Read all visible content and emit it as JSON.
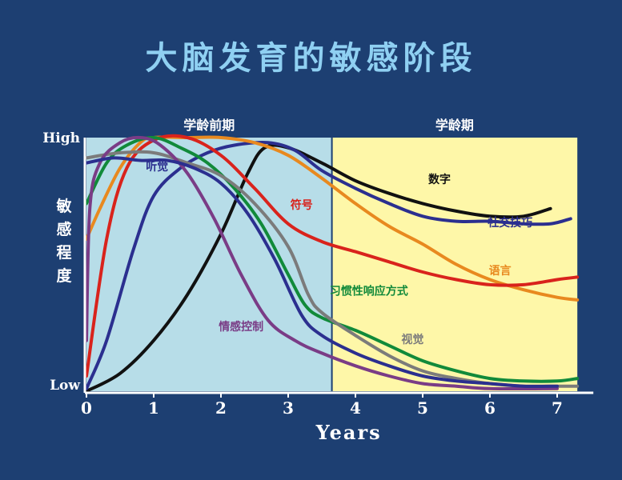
{
  "title": "大脑发育的敏感阶段",
  "chart_data": {
    "type": "line",
    "title": "大脑发育的敏感阶段",
    "xlabel": "Years",
    "ylabel": "敏感程度",
    "x_ticks": [
      "0",
      "1",
      "2",
      "3",
      "4",
      "5",
      "6",
      "7"
    ],
    "xlim": [
      0,
      7.3
    ],
    "ylim": [
      0,
      1
    ],
    "y_tick_labels": {
      "high": "High",
      "low": "Low"
    },
    "regions": [
      {
        "label": "学龄前期",
        "from": 0,
        "to": 3.65,
        "color": "#b7dde8"
      },
      {
        "label": "学龄期",
        "from": 3.65,
        "to": 7.3,
        "color": "#fef7a8"
      }
    ],
    "series": [
      {
        "name": "数字",
        "color": "#111111",
        "label_at": [
          5.25,
          0.82
        ],
        "points": [
          [
            0,
            0
          ],
          [
            0.5,
            0.07
          ],
          [
            1,
            0.2
          ],
          [
            1.5,
            0.38
          ],
          [
            2,
            0.62
          ],
          [
            2.4,
            0.86
          ],
          [
            2.65,
            0.96
          ],
          [
            3,
            0.96
          ],
          [
            3.5,
            0.9
          ],
          [
            4,
            0.83
          ],
          [
            4.5,
            0.78
          ],
          [
            5,
            0.74
          ],
          [
            5.5,
            0.71
          ],
          [
            6,
            0.69
          ],
          [
            6.5,
            0.69
          ],
          [
            6.9,
            0.72
          ]
        ]
      },
      {
        "name": "社交技巧",
        "color": "#2b2f8f",
        "label_at": [
          6.3,
          0.65
        ],
        "points": [
          [
            0,
            0.01
          ],
          [
            0.3,
            0.2
          ],
          [
            0.7,
            0.56
          ],
          [
            1,
            0.77
          ],
          [
            1.4,
            0.88
          ],
          [
            1.8,
            0.94
          ],
          [
            2.2,
            0.97
          ],
          [
            2.7,
            0.98
          ],
          [
            3.1,
            0.95
          ],
          [
            3.5,
            0.87
          ],
          [
            4,
            0.8
          ],
          [
            4.5,
            0.74
          ],
          [
            5,
            0.69
          ],
          [
            5.5,
            0.67
          ],
          [
            6,
            0.67
          ],
          [
            6.5,
            0.66
          ],
          [
            6.9,
            0.66
          ],
          [
            7.2,
            0.68
          ]
        ]
      },
      {
        "name": "语言",
        "color": "#e8891f",
        "label_at": [
          6.15,
          0.46
        ],
        "points": [
          [
            0,
            0.6
          ],
          [
            0.2,
            0.72
          ],
          [
            0.5,
            0.88
          ],
          [
            0.8,
            0.98
          ],
          [
            1,
            1
          ],
          [
            1.5,
            1
          ],
          [
            2,
            1
          ],
          [
            2.5,
            0.98
          ],
          [
            3,
            0.93
          ],
          [
            3.5,
            0.84
          ],
          [
            4,
            0.74
          ],
          [
            4.5,
            0.65
          ],
          [
            5,
            0.58
          ],
          [
            5.5,
            0.5
          ],
          [
            6,
            0.44
          ],
          [
            6.5,
            0.4
          ],
          [
            7,
            0.37
          ],
          [
            7.3,
            0.36
          ]
        ]
      },
      {
        "name": "符号",
        "color": "#d9231c",
        "label_at": [
          3.2,
          0.72
        ],
        "points": [
          [
            0,
            0.06
          ],
          [
            0.3,
            0.6
          ],
          [
            0.6,
            0.88
          ],
          [
            1,
            0.99
          ],
          [
            1.5,
            1
          ],
          [
            2,
            0.93
          ],
          [
            2.5,
            0.8
          ],
          [
            3,
            0.66
          ],
          [
            3.5,
            0.59
          ],
          [
            4,
            0.55
          ],
          [
            4.5,
            0.51
          ],
          [
            5,
            0.47
          ],
          [
            5.5,
            0.44
          ],
          [
            6,
            0.42
          ],
          [
            6.5,
            0.42
          ],
          [
            7,
            0.44
          ],
          [
            7.3,
            0.45
          ]
        ]
      },
      {
        "name": "习惯性响应方式",
        "color": "#118a3a",
        "label_at": [
          4.2,
          0.38
        ],
        "points": [
          [
            0,
            0.74
          ],
          [
            0.3,
            0.9
          ],
          [
            0.6,
            0.97
          ],
          [
            1,
            1
          ],
          [
            1.4,
            0.96
          ],
          [
            1.8,
            0.9
          ],
          [
            2.2,
            0.8
          ],
          [
            2.6,
            0.66
          ],
          [
            3,
            0.46
          ],
          [
            3.25,
            0.34
          ],
          [
            3.5,
            0.29
          ],
          [
            4,
            0.24
          ],
          [
            4.5,
            0.18
          ],
          [
            5,
            0.12
          ],
          [
            5.5,
            0.08
          ],
          [
            6,
            0.05
          ],
          [
            6.5,
            0.04
          ],
          [
            7,
            0.04
          ],
          [
            7.3,
            0.05
          ]
        ]
      },
      {
        "name": "视觉",
        "color": "#7b7b7b",
        "label_at": [
          4.85,
          0.19
        ],
        "points": [
          [
            0,
            0.92
          ],
          [
            0.5,
            0.94
          ],
          [
            1,
            0.94
          ],
          [
            1.5,
            0.9
          ],
          [
            2,
            0.85
          ],
          [
            2.5,
            0.74
          ],
          [
            3,
            0.57
          ],
          [
            3.3,
            0.38
          ],
          [
            3.5,
            0.31
          ],
          [
            4,
            0.22
          ],
          [
            4.5,
            0.14
          ],
          [
            5,
            0.08
          ],
          [
            5.5,
            0.05
          ],
          [
            6,
            0.03
          ],
          [
            6.5,
            0.02
          ],
          [
            7,
            0.02
          ],
          [
            7.3,
            0.02
          ]
        ]
      },
      {
        "name": "情感控制",
        "color": "#7a3c86",
        "label_at": [
          2.3,
          0.24
        ],
        "points": [
          [
            0,
            0.2
          ],
          [
            0.05,
            0.72
          ],
          [
            0.2,
            0.9
          ],
          [
            0.5,
            0.98
          ],
          [
            0.8,
            1
          ],
          [
            1.1,
            0.97
          ],
          [
            1.5,
            0.86
          ],
          [
            1.9,
            0.68
          ],
          [
            2.3,
            0.46
          ],
          [
            2.7,
            0.28
          ],
          [
            3.1,
            0.2
          ],
          [
            3.5,
            0.15
          ],
          [
            4,
            0.1
          ],
          [
            4.5,
            0.06
          ],
          [
            5,
            0.03
          ],
          [
            5.5,
            0.02
          ],
          [
            6,
            0.01
          ],
          [
            7,
            0.01
          ]
        ]
      },
      {
        "name": "听觉",
        "color": "#2b2f8f",
        "label_at": [
          1.05,
          0.87
        ],
        "points": [
          [
            0,
            0.9
          ],
          [
            0.4,
            0.92
          ],
          [
            0.8,
            0.91
          ],
          [
            1.2,
            0.91
          ],
          [
            1.6,
            0.88
          ],
          [
            2,
            0.82
          ],
          [
            2.4,
            0.7
          ],
          [
            2.8,
            0.52
          ],
          [
            3.2,
            0.3
          ],
          [
            3.5,
            0.22
          ],
          [
            4,
            0.15
          ],
          [
            4.5,
            0.1
          ],
          [
            5,
            0.06
          ],
          [
            5.5,
            0.04
          ],
          [
            6,
            0.03
          ],
          [
            6.5,
            0.02
          ],
          [
            7,
            0.02
          ]
        ]
      }
    ]
  }
}
